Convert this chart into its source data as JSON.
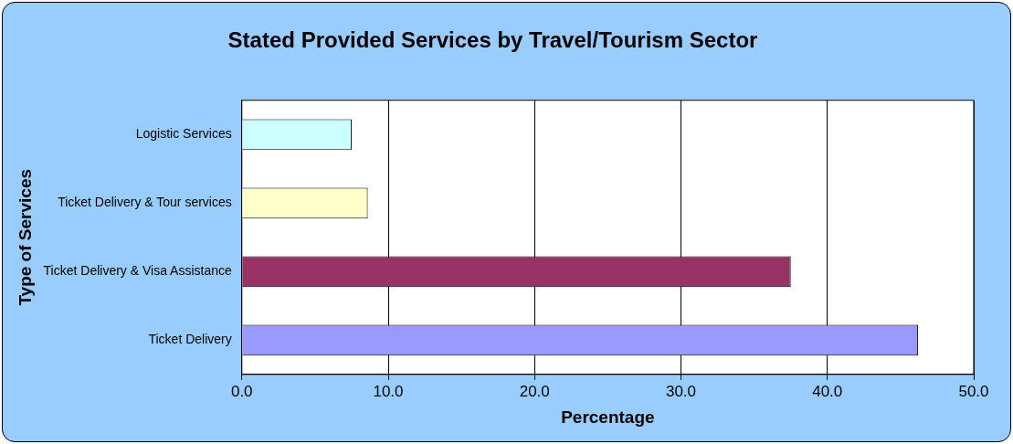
{
  "chart_data": {
    "type": "bar",
    "orientation": "horizontal",
    "title": "Stated Provided Services by Travel/Tourism Sector",
    "xlabel": "Percentage",
    "ylabel": "Type of Services",
    "categories": [
      "Logistic Services",
      "Ticket Delivery & Tour services",
      "Ticket Delivery & Visa Assistance",
      "Ticket Delivery"
    ],
    "values": [
      7.5,
      8.6,
      37.5,
      46.2
    ],
    "colors": [
      "#ccffff",
      "#ffffcc",
      "#993366",
      "#9999ff"
    ],
    "xlim": [
      0,
      50
    ],
    "xticks": [
      {
        "value": 0,
        "label": "0.0"
      },
      {
        "value": 10,
        "label": "10.0"
      },
      {
        "value": 20,
        "label": "20.0"
      },
      {
        "value": 30,
        "label": "30.0"
      },
      {
        "value": 40,
        "label": "40.0"
      },
      {
        "value": 50,
        "label": "50.0"
      }
    ],
    "grid": "x",
    "legend": false
  }
}
